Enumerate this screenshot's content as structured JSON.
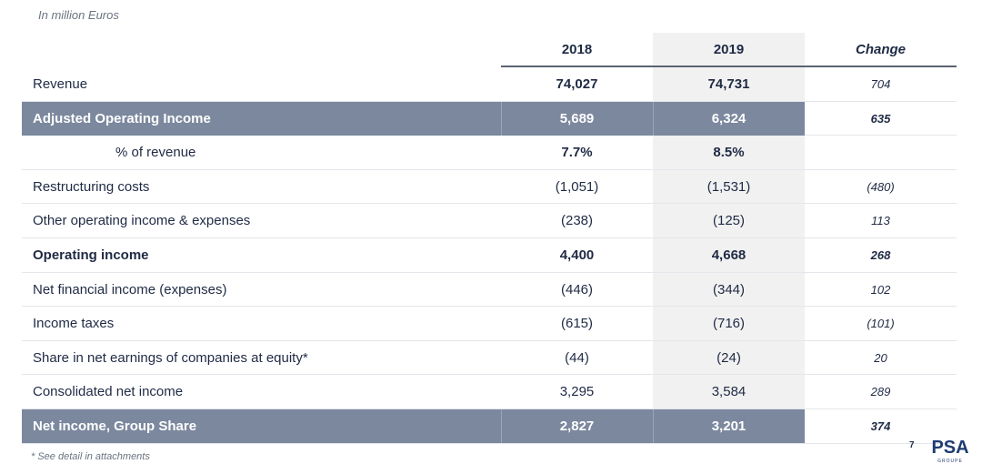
{
  "unit_note": "In million Euros",
  "columns": {
    "y2018": "2018",
    "y2019": "2019",
    "change": "Change"
  },
  "rows": [
    {
      "label": "Revenue",
      "v2018": "74,027",
      "v2019": "74,731",
      "change": "704",
      "style": "normal-boldvals"
    },
    {
      "label": "Adjusted Operating Income",
      "v2018": "5,689",
      "v2019": "6,324",
      "change": "635",
      "style": "highlight"
    },
    {
      "label": "% of revenue",
      "v2018": "7.7%",
      "v2019": "8.5%",
      "change": "",
      "style": "indent-boldvals"
    },
    {
      "label": "Restructuring costs",
      "v2018": "(1,051)",
      "v2019": "(1,531)",
      "change": "(480)",
      "style": "normal"
    },
    {
      "label": "Other operating income & expenses",
      "v2018": "(238)",
      "v2019": "(125)",
      "change": "113",
      "style": "normal"
    },
    {
      "label": "Operating income",
      "v2018": "4,400",
      "v2019": "4,668",
      "change": "268",
      "style": "bold"
    },
    {
      "label": "Net financial income (expenses)",
      "v2018": "(446)",
      "v2019": "(344)",
      "change": "102",
      "style": "normal"
    },
    {
      "label": "Income taxes",
      "v2018": "(615)",
      "v2019": "(716)",
      "change": "(101)",
      "style": "normal"
    },
    {
      "label": "Share in net earnings of companies at equity*",
      "v2018": "(44)",
      "v2019": "(24)",
      "change": "20",
      "style": "normal"
    },
    {
      "label": "Consolidated net income",
      "v2018": "3,295",
      "v2019": "3,584",
      "change": "289",
      "style": "normal"
    },
    {
      "label": "Net income, Group Share",
      "v2018": "2,827",
      "v2019": "3,201",
      "change": "374",
      "style": "highlight"
    }
  ],
  "footnote": "* See detail in attachments",
  "page_number": "7",
  "logo": {
    "text": "PSA",
    "subtext": "GROUPE",
    "icon": "psa-groupe-logo",
    "color": "#1f3b73"
  },
  "colors": {
    "highlight_bar": "#7b889e",
    "column_2019_bg": "#f1f1f1",
    "text": "#1f2a44"
  }
}
